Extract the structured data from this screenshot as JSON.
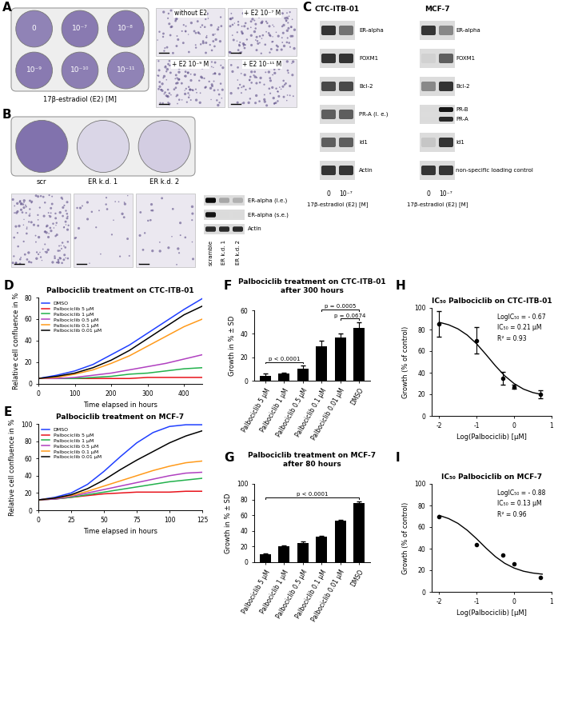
{
  "panel_A": {
    "panel_label": "A",
    "plate": {
      "caption": "17β-estradiol (E2) [M]",
      "wells": [
        {
          "label": "0",
          "stain": 0.75
        },
        {
          "label": "10⁻⁷",
          "stain": 0.8
        },
        {
          "label": "10⁻⁸",
          "stain": 0.8
        },
        {
          "label": "10⁻⁹",
          "stain": 0.8
        },
        {
          "label": "10⁻¹⁰",
          "stain": 0.78
        },
        {
          "label": "10⁻¹¹",
          "stain": 0.75
        }
      ]
    },
    "micrographs": [
      {
        "label": "without E2",
        "density": 0.5
      },
      {
        "label": "+ E2 10⁻⁷ M",
        "density": 0.9
      },
      {
        "label": "+ E2 10⁻⁹ M",
        "density": 0.85
      },
      {
        "label": "+ E2 10⁻¹¹ M",
        "density": 0.6
      }
    ]
  },
  "panel_B": {
    "panel_label": "B",
    "plate": {
      "wells": [
        {
          "label": "scr",
          "stain": 0.85
        },
        {
          "label": "ER k.d. 1",
          "stain": 0.25
        },
        {
          "label": "ER k.d. 2",
          "stain": 0.3
        }
      ]
    },
    "micrographs": [
      {
        "density": 1.0
      },
      {
        "density": 0.2
      },
      {
        "density": 0.2
      }
    ],
    "blot": {
      "lanes": [
        "scramble",
        "ER k.d. 1",
        "ER k.d. 2"
      ],
      "rows": [
        {
          "label": "ER-alpha (l.e.)",
          "intensity": [
            1.0,
            0.25,
            0.2
          ]
        },
        {
          "label": "ER-alpha (s.e.)",
          "intensity": [
            0.95,
            0.0,
            0.0
          ]
        },
        {
          "label": "Actin",
          "intensity": [
            0.85,
            0.85,
            0.85
          ]
        }
      ]
    }
  },
  "panel_C": {
    "panel_label": "C",
    "blots": [
      {
        "title": "CTC-ITB-01",
        "lanes": [
          "0",
          "10⁻⁷"
        ],
        "caption": "17β-estradiol (E2) [M]",
        "rows": [
          {
            "label": "ER-alpha",
            "intensity": [
              0.8,
              0.5
            ]
          },
          {
            "label": "FOXM1",
            "intensity": [
              0.8,
              0.8
            ]
          },
          {
            "label": "Bcl-2",
            "intensity": [
              0.7,
              0.7
            ]
          },
          {
            "label": "PR-A (l. e.)",
            "intensity": [
              0.6,
              0.6
            ]
          },
          {
            "label": "Id1",
            "intensity": [
              0.6,
              0.6
            ]
          },
          {
            "label": "Actin",
            "intensity": [
              0.8,
              0.8
            ]
          }
        ]
      },
      {
        "title": "MCF-7",
        "lanes": [
          "0",
          "10⁻⁷"
        ],
        "caption": "17β-estradiol (E2) [M]",
        "rows": [
          {
            "label": "ER-alpha",
            "intensity": [
              0.8,
              0.4
            ]
          },
          {
            "label": "FOXM1",
            "intensity": [
              0.05,
              0.6
            ]
          },
          {
            "label": "Bcl-2",
            "intensity": [
              0.4,
              0.8
            ]
          },
          {
            "bands": [
              {
                "label": "PR-B",
                "intensity": [
                  0.0,
                  0.95
                ]
              },
              {
                "label": "PR-A",
                "intensity": [
                  0.0,
                  0.85
                ]
              }
            ]
          },
          {
            "label": "Id1",
            "intensity": [
              0.1,
              0.8
            ]
          },
          {
            "label": "non-specific loading control",
            "intensity": [
              0.8,
              0.8
            ]
          }
        ]
      }
    ]
  },
  "chart_data": [
    {
      "panel_label": "D",
      "type": "line",
      "title": "Palbociclib treatment on CTC-ITB-01",
      "x_label": "Time elapsed in hours",
      "y_label": "Relative cell confluence in %",
      "x": [
        0,
        50,
        100,
        150,
        200,
        250,
        300,
        350,
        400,
        450
      ],
      "xlim": [
        0,
        450
      ],
      "xticks": [
        0,
        100,
        200,
        300,
        400
      ],
      "ylim": [
        0,
        80
      ],
      "yticks": [
        0,
        20,
        40,
        60,
        80
      ],
      "legend": "upper left",
      "series": [
        {
          "name": "DMSO",
          "color": "#1f3fff",
          "values": [
            5,
            8,
            12,
            18,
            27,
            36,
            47,
            58,
            69,
            79
          ]
        },
        {
          "name": "Palbociclib 5 µM",
          "color": "#e8141c",
          "values": [
            5,
            5,
            5,
            5,
            5,
            5,
            6,
            6,
            6,
            6
          ]
        },
        {
          "name": "Palbociclib 1 µM",
          "color": "#22b14c",
          "values": [
            5,
            5,
            5,
            6,
            7,
            9,
            10,
            12,
            14,
            15
          ]
        },
        {
          "name": "Palbociclib 0.5 µM",
          "color": "#b040c0",
          "values": [
            5,
            5,
            6,
            8,
            10,
            13,
            16,
            19,
            23,
            27
          ]
        },
        {
          "name": "Palbociclib 0.1 µM",
          "color": "#ff9a1a",
          "values": [
            5,
            6,
            9,
            13,
            19,
            26,
            35,
            44,
            53,
            60
          ]
        },
        {
          "name": "Palbociclib 0.01 µM",
          "color": "#000000",
          "values": [
            5,
            7,
            10,
            15,
            22,
            31,
            42,
            53,
            64,
            72
          ]
        }
      ]
    },
    {
      "panel_label": "E",
      "type": "line",
      "title": "Palbociclib treatment on MCF-7",
      "x_label": "Time elapsed in hours",
      "y_label": "Relative cell confluence in %",
      "x": [
        0,
        12.5,
        25,
        37.5,
        50,
        62.5,
        75,
        87.5,
        100,
        112.5,
        125
      ],
      "xlim": [
        0,
        125
      ],
      "xticks": [
        0,
        25,
        50,
        75,
        100,
        125
      ],
      "ylim": [
        0,
        100
      ],
      "yticks": [
        0,
        20,
        40,
        60,
        80,
        100
      ],
      "legend": "upper left",
      "series": [
        {
          "name": "DMSO",
          "color": "#1f3fff",
          "values": [
            12,
            15,
            20,
            30,
            45,
            62,
            78,
            90,
            97,
            99,
            99
          ]
        },
        {
          "name": "Palbociclib 5 µM",
          "color": "#e8141c",
          "values": [
            12,
            13,
            15,
            17,
            19,
            20,
            21,
            21,
            21,
            22,
            22
          ]
        },
        {
          "name": "Palbociclib 1 µM",
          "color": "#22b14c",
          "values": [
            12,
            13,
            15,
            18,
            21,
            24,
            27,
            30,
            33,
            35,
            37
          ]
        },
        {
          "name": "Palbociclib 0.5 µM",
          "color": "#b040c0",
          "values": [
            12,
            13,
            16,
            20,
            24,
            28,
            32,
            36,
            40,
            43,
            44
          ]
        },
        {
          "name": "Palbociclib 0.1 µM",
          "color": "#ff9a1a",
          "values": [
            12,
            14,
            17,
            22,
            28,
            34,
            40,
            46,
            51,
            55,
            57
          ]
        },
        {
          "name": "Palbociclib 0.01 µM",
          "color": "#000000",
          "values": [
            12,
            14,
            18,
            25,
            35,
            47,
            58,
            68,
            78,
            86,
            92
          ]
        }
      ]
    },
    {
      "panel_label": "F",
      "type": "bar",
      "title": "Palbociclib treatment on CTC-ITB-01\nafter 300 hours",
      "y_label": "Growth in % ± SD",
      "categories": [
        "Palbociclib 5 µM",
        "Palbociclib 1 µM",
        "Palbociclib 0.5 µM",
        "Palbociclib 0.1 µM",
        "Palbociclib 0.01 µM",
        "DMSO"
      ],
      "values": [
        4,
        6,
        10,
        29,
        37,
        45
      ],
      "errors": [
        2,
        1,
        3,
        5,
        3,
        5
      ],
      "color": "#000000",
      "ylim": [
        0,
        60
      ],
      "yticks": [
        0,
        20,
        40,
        60
      ],
      "comparisons": [
        {
          "from": "Palbociclib 5 µM",
          "to": "Palbociclib 0.5 µM",
          "label": "p < 0.0001"
        },
        {
          "from": "Palbociclib 0.01 µM",
          "to": "DMSO",
          "label": "p = 0.0674"
        },
        {
          "from": "Palbociclib 0.1 µM",
          "to": "DMSO",
          "label": "p = 0.0005"
        }
      ]
    },
    {
      "panel_label": "G",
      "type": "bar",
      "title": "Palbociclib treatment on MCF-7\nafter 80 hours",
      "y_label": "Growth in % ± SD",
      "categories": [
        "Palbociclib 5 µM",
        "Palbociclib 1 µM",
        "Palbociclib 0.5 µM",
        "Palbociclib 0.1 µM",
        "Palbociclib 0.01 µM",
        "DMSO"
      ],
      "values": [
        10,
        20,
        25,
        33,
        53,
        76
      ],
      "errors": [
        1,
        1.5,
        1.5,
        1,
        1,
        2
      ],
      "color": "#000000",
      "ylim": [
        0,
        100
      ],
      "yticks": [
        0,
        20,
        40,
        60,
        80,
        100
      ],
      "comparisons": [
        {
          "from": "Palbociclib 5 µM",
          "to": "DMSO",
          "label": "p < 0.0001"
        }
      ]
    },
    {
      "panel_label": "H",
      "type": "scatter",
      "title": "IC₅₀ Palbociclib on CTC-ITB-01",
      "x_label": "Log(Palbociclib) [µM]",
      "y_label": "Growth (% of control)",
      "x": [
        -2,
        -1,
        -0.3,
        0,
        0.7
      ],
      "values": [
        85,
        70,
        35,
        27,
        20
      ],
      "errors": [
        12,
        12,
        6,
        2,
        4
      ],
      "color": "#000000",
      "marker": "o",
      "fit": {
        "line_style": "solid",
        "x": [
          -2,
          -1.75,
          -1.5,
          -1.25,
          -1,
          -0.75,
          -0.5,
          -0.25,
          0,
          0.25,
          0.5,
          0.75
        ],
        "values": [
          86.7,
          84.4,
          80.6,
          74.8,
          66.7,
          56.8,
          46.4,
          37.1,
          29.9,
          24.8,
          21.6,
          19.7
        ]
      },
      "annotations": [
        "LogIC₅₀ = - 0.67",
        "IC₅₀ = 0.21 µM",
        "R² = 0.93"
      ],
      "xlim": [
        -2.2,
        1
      ],
      "xticks": [
        -2,
        -1,
        0,
        1
      ],
      "ylim": [
        0,
        100
      ],
      "yticks": [
        0,
        20,
        40,
        60,
        80,
        100
      ]
    },
    {
      "panel_label": "I",
      "type": "scatter",
      "title": "IC₅₀ Palbociclib on MCF-7",
      "x_label": "Log(Palbociclib) [µM]",
      "y_label": "Growth (% of control)",
      "x": [
        -2,
        -1,
        -0.3,
        0,
        0.7
      ],
      "values": [
        70,
        44,
        34,
        26,
        13
      ],
      "color": "#000000",
      "marker": "o",
      "fit": {
        "line_style": "solid",
        "x": [
          -2,
          -1.75,
          -1.5,
          -1.25,
          -1,
          -0.75,
          -0.5,
          -0.25,
          0,
          0.25,
          0.5,
          0.75
        ],
        "values": [
          70.8,
          67.9,
          63.4,
          57.0,
          49.1,
          40.5,
          32.6,
          26.4,
          22.0,
          19.1,
          17.4,
          16.4
        ]
      },
      "annotations": [
        "LogIC₅₀ = - 0.88",
        "IC₅₀ = 0.13 µM",
        "R² = 0.96"
      ],
      "xlim": [
        -2.2,
        1
      ],
      "xticks": [
        -2,
        -1,
        0,
        1
      ],
      "ylim": [
        0,
        100
      ],
      "yticks": [
        0,
        20,
        40,
        60,
        80,
        100
      ]
    }
  ]
}
